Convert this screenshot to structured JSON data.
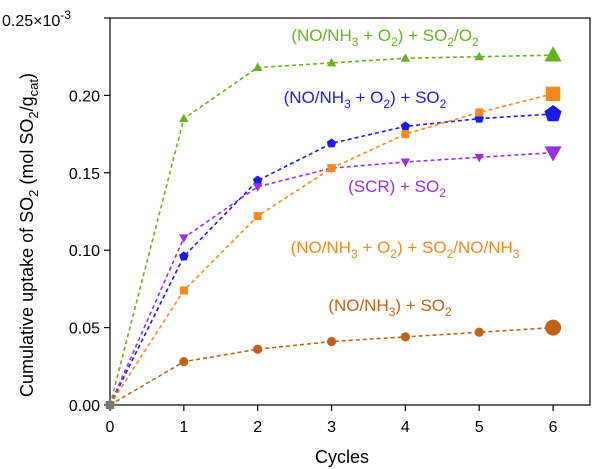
{
  "chart_data": {
    "type": "line",
    "xlabel": "Cycles",
    "ylabel": "Cumulative uptake of SO2 (mol SO2/gcat)",
    "ylabel_parts": {
      "prefix": "Cumulative uptake of SO",
      "sub1": "2",
      "mid": " (mol SO",
      "sub2": "2",
      "slash": "/g",
      "sub3": "cat",
      "suffix": ")"
    },
    "y_multiplier": "×10",
    "y_multiplier_exp": "-3",
    "xlim": [
      0,
      6.5
    ],
    "ylim": [
      0,
      0.25
    ],
    "xticks": [
      "0",
      "1",
      "2",
      "3",
      "4",
      "5",
      "6"
    ],
    "yticks": [
      "0.00",
      "0.05",
      "0.10",
      "0.15",
      "0.20",
      "0.25"
    ],
    "x": [
      0,
      1,
      2,
      3,
      4,
      5,
      6
    ],
    "series": [
      {
        "name": "(NO/NH3 + O2) + SO2/O2",
        "label_parts": [
          [
            "(NO/NH",
            ""
          ],
          [
            "3",
            "sub"
          ],
          [
            " + O",
            ""
          ],
          [
            "2",
            "sub"
          ],
          [
            ") + SO",
            ""
          ],
          [
            "2",
            "sub"
          ],
          [
            "/O",
            ""
          ],
          [
            "2",
            "sub"
          ]
        ],
        "color": "#66b21f",
        "marker": "triangle-up",
        "values": [
          0,
          0.185,
          0.218,
          0.221,
          0.224,
          0.225,
          0.226
        ]
      },
      {
        "name": "(NO/NH3 + O2) + SO2",
        "label_parts": [
          [
            "(NO/NH",
            ""
          ],
          [
            "3",
            "sub"
          ],
          [
            " + O",
            ""
          ],
          [
            "2",
            "sub"
          ],
          [
            ") + SO",
            ""
          ],
          [
            "2",
            "sub"
          ]
        ],
        "color": "#1a1aee",
        "marker": "pentagon",
        "values": [
          0,
          0.096,
          0.145,
          0.169,
          0.18,
          0.185,
          0.188
        ]
      },
      {
        "name": "(SCR) + SO2",
        "label_parts": [
          [
            "(SCR) + SO",
            ""
          ],
          [
            "2",
            "sub"
          ]
        ],
        "color": "#9b2ee6",
        "marker": "triangle-down",
        "values": [
          0,
          0.108,
          0.141,
          0.153,
          0.157,
          0.16,
          0.163
        ]
      },
      {
        "name": "(NO/NH3 + O2) + SO2/NO/NH3",
        "label_parts": [
          [
            "(NO/NH",
            ""
          ],
          [
            "3",
            "sub"
          ],
          [
            " + O",
            ""
          ],
          [
            "2",
            "sub"
          ],
          [
            ") + SO",
            ""
          ],
          [
            "2",
            "sub"
          ],
          [
            "/NO/NH",
            ""
          ],
          [
            "3",
            "sub"
          ]
        ],
        "color": "#f5891e",
        "marker": "square",
        "values": [
          0,
          0.074,
          0.122,
          0.153,
          0.175,
          0.189,
          0.201
        ]
      },
      {
        "name": "(NO/NH3) + SO2",
        "label_parts": [
          [
            "(NO/NH",
            ""
          ],
          [
            "3",
            "sub"
          ],
          [
            ") + SO",
            ""
          ],
          [
            "2",
            "sub"
          ]
        ],
        "color": "#c0621a",
        "marker": "circle",
        "values": [
          0,
          0.028,
          0.036,
          0.041,
          0.044,
          0.047,
          0.05
        ]
      }
    ],
    "start_point_color": "#777777",
    "grid": false,
    "legend": "none (inline labels next to curves)"
  }
}
